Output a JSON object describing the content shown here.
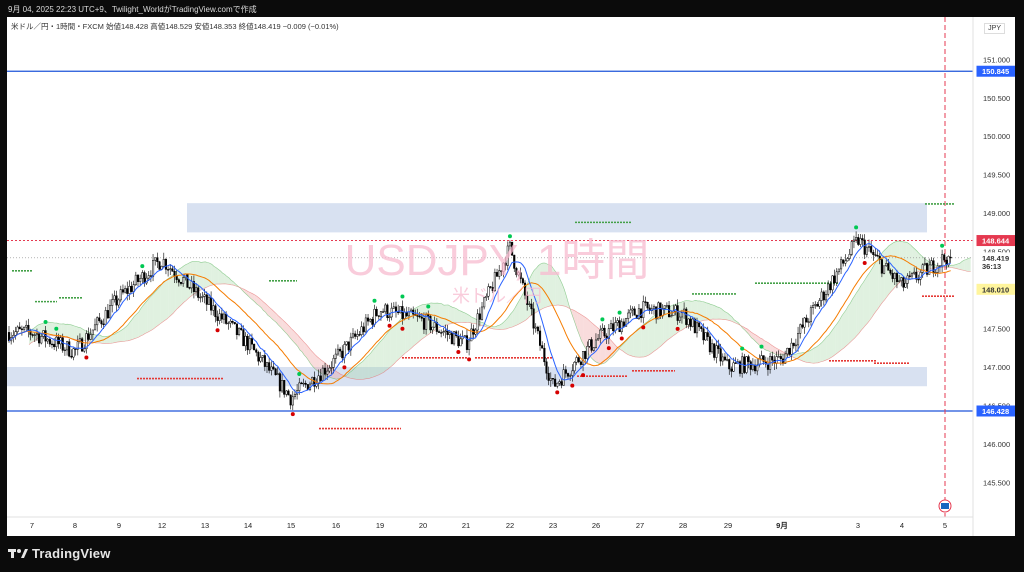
{
  "header": {
    "timestamp": "9月 04, 2025 22:23 UTC+9、Twilight_WorldがTradingView.comで作成"
  },
  "symbol_bar": {
    "text": "米ドル／円・1時間・FXCM  始値148.428  高値148.529  安値148.353  終値148.419  −0.009 (−0.01%)"
  },
  "currency_label": "JPY",
  "watermark": {
    "main": "USDJPY, 1時間",
    "sub": "米ドル／円"
  },
  "footer": {
    "brand": "TradingView"
  },
  "colors": {
    "up_candle": "#ffffff",
    "down_candle": "#000000",
    "tenkan": "#2962ff",
    "kijun": "#f57c00",
    "cloud_a": "#a5d6a7",
    "cloud_b": "#ef9a9a",
    "zone": "#d6dff0",
    "hline": "#1e55d9",
    "resist_dot": "#e53935",
    "top_marker": "#00c853",
    "bottom_marker": "#d50000"
  },
  "chart_data": {
    "type": "candlestick",
    "x_tick_labels": [
      "7",
      "8",
      "9",
      "12",
      "13",
      "14",
      "15",
      "16",
      "19",
      "20",
      "21",
      "22",
      "23",
      "26",
      "27",
      "28",
      "29",
      "9月",
      "3",
      "4",
      "5"
    ],
    "y_tick_values": [
      145.5,
      146.0,
      146.5,
      147.0,
      147.5,
      148.0,
      148.5,
      149.0,
      149.5,
      150.0,
      150.5,
      151.0
    ],
    "y_tick_labels": [
      "145.500",
      "146.000",
      "146.500",
      "147.000",
      "147.500",
      "148.000",
      "148.500",
      "149.000",
      "149.500",
      "150.000",
      "150.500",
      "151.000"
    ],
    "ylim": [
      145.05,
      151.55
    ],
    "price_tags": [
      {
        "label": "150.845",
        "value": 150.845,
        "color": "#2962ff"
      },
      {
        "label": "148.644",
        "value": 148.644,
        "color": "#e53950"
      },
      {
        "label": "148.419",
        "value": 148.419,
        "color": "#ffffff"
      },
      {
        "label": "36:13",
        "value": 148.31,
        "color": "#ffffff"
      },
      {
        "label": "148.010",
        "value": 148.01,
        "color": "#fff59d"
      },
      {
        "label": "146.428",
        "value": 146.428,
        "color": "#2962ff"
      }
    ],
    "horizontal_lines": [
      {
        "name": "upper support/resistance",
        "value": 150.845
      },
      {
        "name": "lower support/resistance",
        "value": 146.428
      },
      {
        "name": "dotted red",
        "value": 148.644
      }
    ],
    "zones": [
      {
        "name": "upper zone",
        "low": 148.75,
        "high": 149.13
      },
      {
        "name": "lower zone",
        "low": 146.75,
        "high": 147.0
      }
    ],
    "session_anchors": [
      {
        "label": "7",
        "value": 147.45
      },
      {
        "label": "8",
        "value": 147.2
      },
      {
        "label": "9",
        "value": 147.9
      },
      {
        "label": "12",
        "value": 148.4
      },
      {
        "label": "13",
        "value": 147.85
      },
      {
        "label": "14",
        "value": 147.3
      },
      {
        "label": "15",
        "value": 146.6
      },
      {
        "label": "16",
        "value": 147.1
      },
      {
        "label": "19",
        "value": 147.75
      },
      {
        "label": "20",
        "value": 147.6
      },
      {
        "label": "21",
        "value": 147.3
      },
      {
        "label": "22",
        "value": 148.55
      },
      {
        "label": "23",
        "value": 146.75
      },
      {
        "label": "26",
        "value": 147.35
      },
      {
        "label": "27",
        "value": 147.75
      },
      {
        "label": "28",
        "value": 147.7
      },
      {
        "label": "29",
        "value": 147.0
      },
      {
        "label": "9月",
        "value": 147.1
      },
      {
        "label": "3",
        "value": 148.65
      },
      {
        "label": "4",
        "value": 148.05
      },
      {
        "label": "5",
        "value": 148.42
      }
    ],
    "last": {
      "open": 148.428,
      "high": 148.529,
      "low": 148.353,
      "close": 148.419,
      "change": "−0.009",
      "change_pct": "−0.01%"
    }
  }
}
